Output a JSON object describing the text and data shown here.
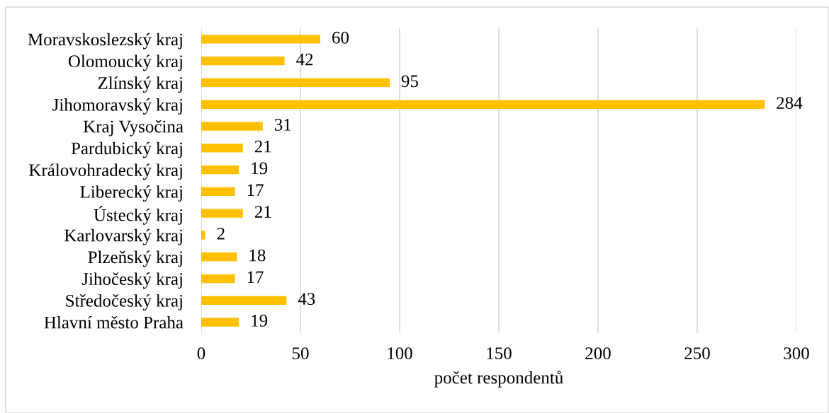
{
  "chart_data": {
    "type": "bar",
    "orientation": "horizontal",
    "categories": [
      "Moravskoslezský kraj",
      "Olomoucký kraj",
      "Zlínský kraj",
      "Jihomoravský kraj",
      "Kraj Vysočina",
      "Pardubický kraj",
      "Královohradecký kraj",
      "Liberecký kraj",
      "Ústecký kraj",
      "Karlovarský kraj",
      "Plzeňský kraj",
      "Jihočeský kraj",
      "Středočeský kraj",
      "Hlavní město Praha"
    ],
    "values": [
      60,
      42,
      95,
      284,
      31,
      21,
      19,
      17,
      21,
      2,
      18,
      17,
      43,
      19
    ],
    "color": "#ffc000",
    "xlim": [
      0,
      300
    ],
    "xticks": [
      0,
      50,
      100,
      150,
      200,
      250,
      300
    ],
    "xlabel": "počet respondentů",
    "grid": "x",
    "data_labels": true
  }
}
